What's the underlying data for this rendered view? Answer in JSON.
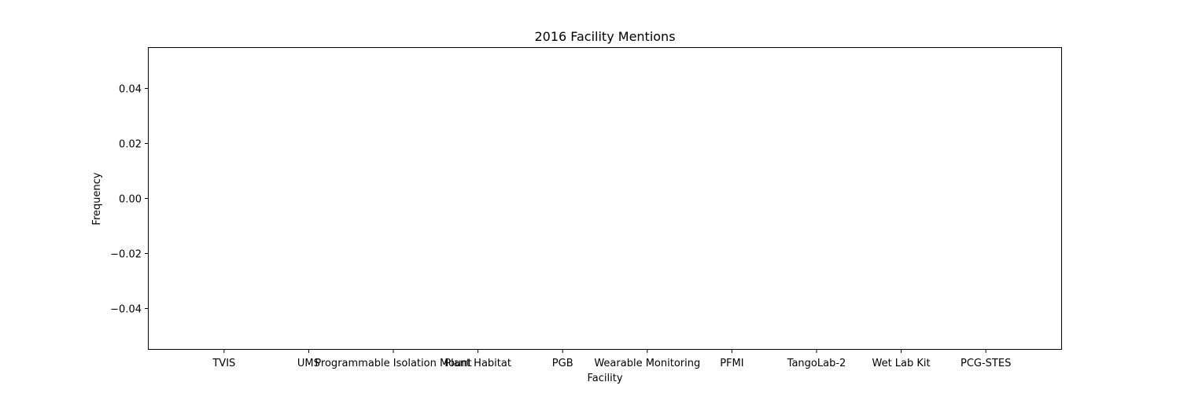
{
  "chart_data": {
    "type": "bar",
    "title": "2016 Facility Mentions",
    "xlabel": "Facility",
    "ylabel": "Frequency",
    "categories": [
      "TVIS",
      "UMS",
      "Programmable Isolation Mount",
      "Plant Habitat",
      "PGB",
      "Wearable Monitoring",
      "PFMI",
      "TangoLab-2",
      "Wet Lab Kit",
      "PCG-STES"
    ],
    "values": [
      0,
      0,
      0,
      0,
      0,
      0,
      0,
      0,
      0,
      0
    ],
    "ylim": [
      -0.055,
      0.055
    ],
    "yticks": [
      -0.04,
      -0.02,
      0.0,
      0.02,
      0.04
    ],
    "ytick_labels": [
      "−0.04",
      "−0.02",
      "0.00",
      "0.02",
      "0.04"
    ],
    "grid": false,
    "colors": {
      "bar": "#1f77b4",
      "axes": "#000000",
      "background": "#ffffff"
    }
  }
}
